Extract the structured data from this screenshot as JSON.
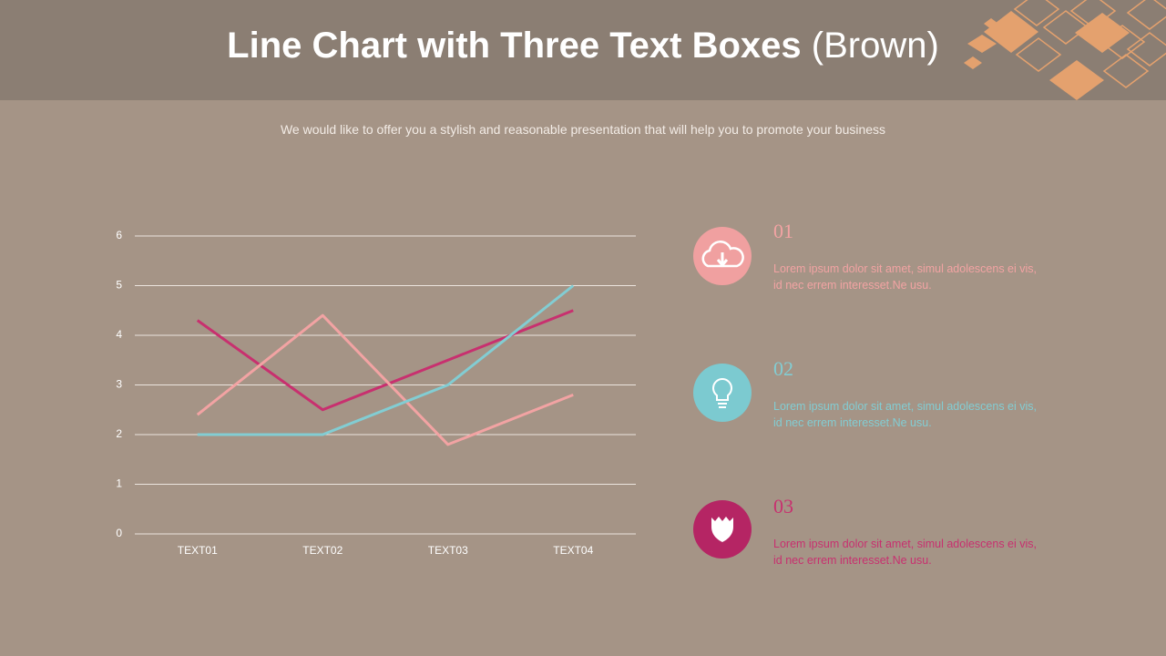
{
  "title": {
    "main": "Line Chart with Three Text Boxes",
    "suffix": "(Brown)"
  },
  "subtitle": "We would like to offer you a stylish and reasonable presentation that will help you to promote your business",
  "chart_data": {
    "type": "line",
    "categories": [
      "TEXT01",
      "TEXT02",
      "TEXT03",
      "TEXT04"
    ],
    "series": [
      {
        "color": "#c8306f",
        "values": [
          4.3,
          2.5,
          3.5,
          4.5
        ]
      },
      {
        "color": "#f2a3a3",
        "values": [
          2.4,
          4.4,
          1.8,
          2.8
        ]
      },
      {
        "color": "#82cdd3",
        "values": [
          2.0,
          2.0,
          3.0,
          5.0
        ]
      }
    ],
    "ylim": [
      0,
      6
    ],
    "yticks": [
      0,
      1,
      2,
      3,
      4,
      5,
      6
    ],
    "grid": true
  },
  "text_boxes": [
    {
      "number": "01",
      "text": "Lorem ipsum dolor sit amet, simul adolescens ei vis, id nec errem interesset.Ne usu.",
      "color": "#f2a3a3"
    },
    {
      "number": "02",
      "text": "Lorem ipsum dolor sit amet, simul adolescens ei vis, id nec errem interesset.Ne usu.",
      "color": "#82cdd3"
    },
    {
      "number": "03",
      "text": "Lorem ipsum dolor sit amet, simul adolescens ei vis, id nec errem interesset.Ne usu.",
      "color": "#c8306f"
    }
  ]
}
